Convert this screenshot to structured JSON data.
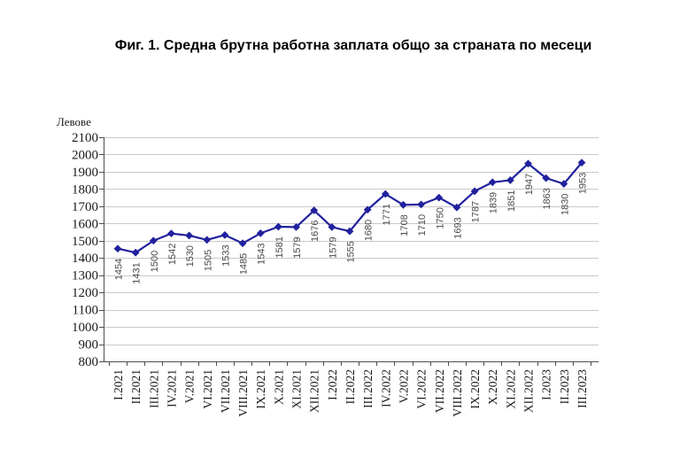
{
  "page": {
    "background": "#ffffff"
  },
  "chart_data": {
    "type": "line",
    "title": "Фиг. 1. Средна брутна работна заплата общо за страната по месеци",
    "ylabel": "Левове",
    "xlabel": "",
    "categories": [
      "I.2021",
      "II.2021",
      "III.2021",
      "IV.2021",
      "V.2021",
      "VI.2021",
      "VII.2021",
      "VIII.2021",
      "IX.2021",
      "X.2021",
      "XI.2021",
      "XII.2021",
      "I.2022",
      "II.2022",
      "III.2022",
      "IV.2022",
      "V.2022",
      "VI.2022",
      "VII.2022",
      "VIII.2022",
      "IX.2022",
      "X.2022",
      "XI.2022",
      "XII.2022",
      "I.2023",
      "II.2023",
      "III.2023"
    ],
    "values": [
      1454,
      1431,
      1500,
      1542,
      1530,
      1505,
      1533,
      1485,
      1543,
      1581,
      1579,
      1676,
      1579,
      1555,
      1680,
      1771,
      1708,
      1710,
      1750,
      1693,
      1787,
      1839,
      1851,
      1947,
      1863,
      1830,
      1953
    ],
    "ylim": [
      800,
      2100
    ],
    "ytick_step": 100,
    "yticks": [
      800,
      900,
      1000,
      1100,
      1200,
      1300,
      1400,
      1500,
      1600,
      1700,
      1800,
      1900,
      2000,
      2100
    ],
    "grid": "horizontal",
    "legend": "none",
    "marker": "diamond",
    "data_labels": "rotated-90-below-points",
    "x_tick_labels": "rotated-90",
    "colors": {
      "line": "#21219E",
      "marker": "#21219E",
      "gridline": "#C9C9C9",
      "axis": "#4D4D4D",
      "data_label": "#4A4A4A",
      "tick_label": "#1A1A1A",
      "title": "#000000"
    }
  }
}
